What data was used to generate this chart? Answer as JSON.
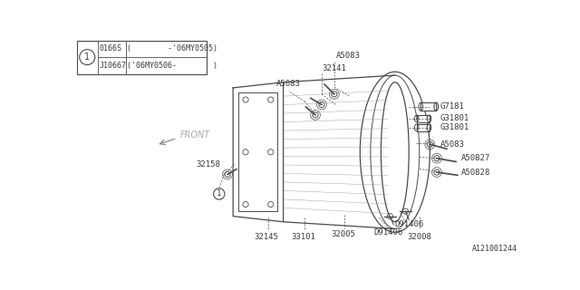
{
  "bg_color": "#ffffff",
  "line_color": "#4a4a4a",
  "text_color": "#3a3a3a",
  "fig_width": 6.4,
  "fig_height": 3.2,
  "dpi": 100,
  "part_id": "A121001244",
  "table": {
    "circle_label": "1",
    "row1_code": "0166S",
    "row1_range": "(        -’06MY0505)",
    "row2_code": "J10667",
    "row2_range": "(’06MY0506-        )"
  }
}
